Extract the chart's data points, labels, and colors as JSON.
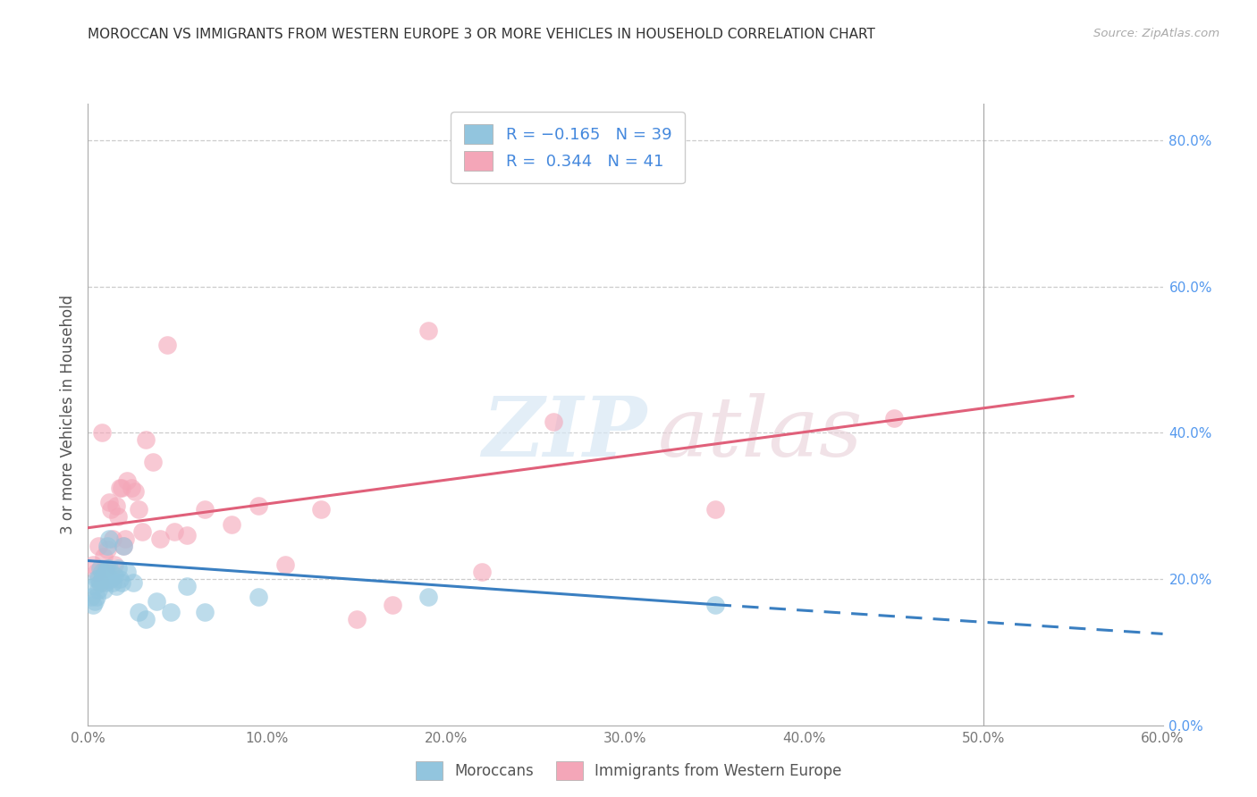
{
  "title": "MOROCCAN VS IMMIGRANTS FROM WESTERN EUROPE 3 OR MORE VEHICLES IN HOUSEHOLD CORRELATION CHART",
  "source": "Source: ZipAtlas.com",
  "ylabel": "3 or more Vehicles in Household",
  "xlabel_ticks": [
    "0.0%",
    "10.0%",
    "20.0%",
    "30.0%",
    "40.0%",
    "50.0%",
    "60.0%"
  ],
  "ylabel_ticks": [
    "0.0%",
    "20.0%",
    "40.0%",
    "60.0%",
    "80.0%"
  ],
  "xmin": 0.0,
  "xmax": 0.6,
  "ymin": 0.0,
  "ymax": 0.85,
  "legend_entry1": "R = -0.165   N = 39",
  "legend_entry2": "R =  0.344   N = 41",
  "legend_label1": "Moroccans",
  "legend_label2": "Immigrants from Western Europe",
  "color_blue": "#92c5de",
  "color_pink": "#f4a6b8",
  "line_color_blue": "#3a7fc1",
  "line_color_pink": "#e0607a",
  "watermark_zip": "ZIP",
  "watermark_atlas": "atlas",
  "blue_x": [
    0.002,
    0.003,
    0.004,
    0.004,
    0.005,
    0.005,
    0.006,
    0.006,
    0.007,
    0.007,
    0.008,
    0.008,
    0.009,
    0.009,
    0.01,
    0.01,
    0.011,
    0.011,
    0.012,
    0.012,
    0.013,
    0.014,
    0.015,
    0.016,
    0.017,
    0.018,
    0.019,
    0.02,
    0.022,
    0.025,
    0.028,
    0.032,
    0.038,
    0.046,
    0.055,
    0.065,
    0.095,
    0.19,
    0.35
  ],
  "blue_y": [
    0.175,
    0.165,
    0.19,
    0.17,
    0.2,
    0.175,
    0.185,
    0.2,
    0.195,
    0.215,
    0.21,
    0.2,
    0.185,
    0.205,
    0.195,
    0.21,
    0.215,
    0.245,
    0.255,
    0.215,
    0.2,
    0.195,
    0.205,
    0.19,
    0.215,
    0.2,
    0.195,
    0.245,
    0.21,
    0.195,
    0.155,
    0.145,
    0.17,
    0.155,
    0.19,
    0.155,
    0.175,
    0.175,
    0.165
  ],
  "pink_x": [
    0.003,
    0.005,
    0.006,
    0.007,
    0.008,
    0.009,
    0.01,
    0.011,
    0.012,
    0.013,
    0.014,
    0.015,
    0.016,
    0.017,
    0.018,
    0.019,
    0.02,
    0.021,
    0.022,
    0.024,
    0.026,
    0.028,
    0.03,
    0.032,
    0.036,
    0.04,
    0.044,
    0.048,
    0.055,
    0.065,
    0.08,
    0.095,
    0.11,
    0.13,
    0.15,
    0.17,
    0.19,
    0.22,
    0.26,
    0.35,
    0.45
  ],
  "pink_y": [
    0.22,
    0.21,
    0.245,
    0.195,
    0.4,
    0.23,
    0.215,
    0.24,
    0.305,
    0.295,
    0.255,
    0.22,
    0.3,
    0.285,
    0.325,
    0.325,
    0.245,
    0.255,
    0.335,
    0.325,
    0.32,
    0.295,
    0.265,
    0.39,
    0.36,
    0.255,
    0.52,
    0.265,
    0.26,
    0.295,
    0.275,
    0.3,
    0.22,
    0.295,
    0.145,
    0.165,
    0.54,
    0.21,
    0.415,
    0.295,
    0.42
  ],
  "blue_line_x_start": 0.0,
  "blue_line_x_solid_end": 0.35,
  "blue_line_x_dash_end": 0.6,
  "blue_line_y_start": 0.225,
  "blue_line_y_solid_end": 0.165,
  "blue_line_y_dash_end": 0.125,
  "pink_line_x_start": 0.0,
  "pink_line_x_end": 0.55,
  "pink_line_y_start": 0.27,
  "pink_line_y_end": 0.45,
  "vline_x": 0.5
}
